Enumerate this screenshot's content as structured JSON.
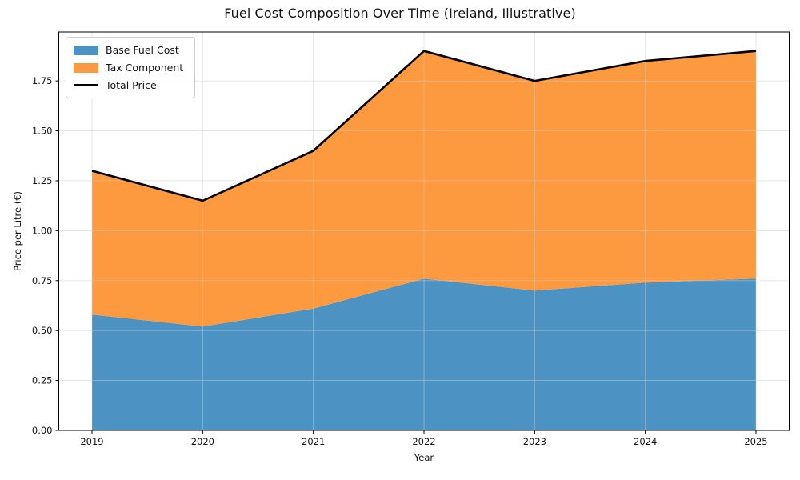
{
  "chart_data": {
    "type": "area",
    "stacked": true,
    "title": "Fuel Cost Composition Over Time (Ireland, Illustrative)",
    "xlabel": "Year",
    "ylabel": "Price per Litre (€)",
    "x": [
      2019,
      2020,
      2021,
      2022,
      2023,
      2024,
      2025
    ],
    "series": [
      {
        "name": "Base Fuel Cost",
        "color": "#4C93C4",
        "values": [
          0.58,
          0.52,
          0.61,
          0.76,
          0.7,
          0.74,
          0.76
        ]
      },
      {
        "name": "Tax Component",
        "color": "#FD993F",
        "values": [
          0.72,
          0.63,
          0.79,
          1.14,
          1.05,
          1.11,
          1.14
        ]
      }
    ],
    "line": {
      "name": "Total Price",
      "color": "#000000",
      "values": [
        1.3,
        1.15,
        1.4,
        1.9,
        1.75,
        1.85,
        1.9
      ]
    },
    "totals": [
      1.3,
      1.15,
      1.4,
      1.9,
      1.75,
      1.85,
      1.9
    ],
    "xticks": [
      "2019",
      "2020",
      "2021",
      "2022",
      "2023",
      "2024",
      "2025"
    ],
    "yticks": [
      0.0,
      0.25,
      0.5,
      0.75,
      1.0,
      1.25,
      1.5,
      1.75
    ],
    "ylim": [
      0,
      1.995
    ],
    "grid": true,
    "grid_color": "#cccccc",
    "legend_position": "upper-left",
    "text_color": "#141414"
  }
}
